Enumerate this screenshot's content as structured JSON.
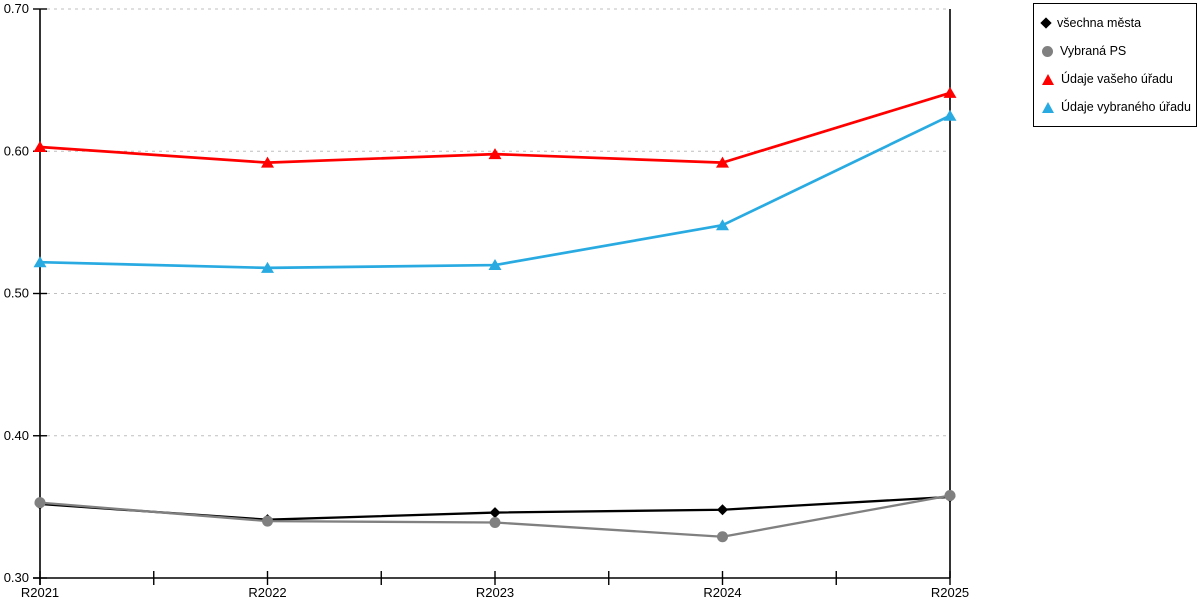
{
  "chart": {
    "background": "#ffffff",
    "axis_color": "#000000",
    "grid_color": "#bfbfbf",
    "text_color": "#000000"
  },
  "chart_data": {
    "type": "line",
    "title": "",
    "xlabel": "",
    "ylabel": "",
    "categories": [
      "R2021",
      "R2022",
      "R2023",
      "R2024",
      "R2025"
    ],
    "series": [
      {
        "name": "všechna města",
        "marker": "diamond",
        "color": "#000000",
        "values": [
          0.352,
          0.341,
          0.346,
          0.348,
          0.357
        ]
      },
      {
        "name": "Vybraná PS",
        "marker": "circle",
        "color": "#808080",
        "values": [
          0.353,
          0.34,
          0.339,
          0.329,
          0.358
        ]
      },
      {
        "name": "Údaje vašeho úřadu",
        "marker": "triangle",
        "color": "#ff0000",
        "values": [
          0.603,
          0.592,
          0.598,
          0.592,
          0.641
        ]
      },
      {
        "name": "Údaje vybraného úřadu",
        "marker": "triangle",
        "color": "#29abe2",
        "values": [
          0.522,
          0.518,
          0.52,
          0.548,
          0.625
        ]
      }
    ],
    "ylim": [
      0.3,
      0.7
    ],
    "y_ticks": [
      "0.30",
      "0.40",
      "0.50",
      "0.60",
      "0.70"
    ],
    "grid": "horizontal-dashed",
    "legend_position": "top-right"
  }
}
